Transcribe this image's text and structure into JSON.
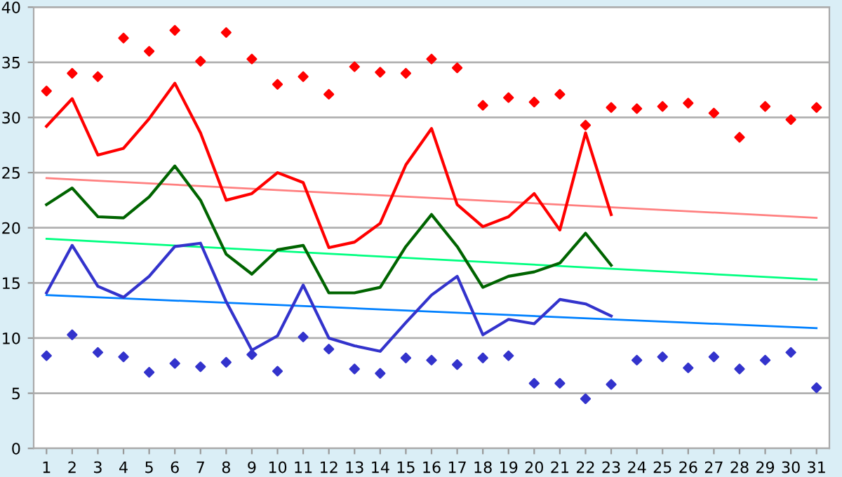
{
  "chart_data": {
    "type": "line",
    "x": [
      1,
      2,
      3,
      4,
      5,
      6,
      7,
      8,
      9,
      10,
      11,
      12,
      13,
      14,
      15,
      16,
      17,
      18,
      19,
      20,
      21,
      22,
      23,
      24,
      25,
      26,
      27,
      28,
      29,
      30,
      31
    ],
    "xlim": [
      0.5,
      31.5
    ],
    "xticks": [
      1,
      2,
      3,
      4,
      5,
      6,
      7,
      8,
      9,
      10,
      11,
      12,
      13,
      14,
      15,
      16,
      17,
      18,
      19,
      20,
      21,
      22,
      23,
      24,
      25,
      26,
      27,
      28,
      29,
      30,
      31
    ],
    "ylim": [
      0,
      40
    ],
    "yticks": [
      0,
      5,
      10,
      15,
      20,
      25,
      30,
      35,
      40
    ],
    "grid": "y",
    "legend": false,
    "series": [
      {
        "type": "scatter",
        "color": "#ff0000",
        "marker": "diamond",
        "values": [
          32.4,
          34.0,
          33.7,
          37.2,
          36.0,
          37.9,
          35.1,
          37.7,
          35.3,
          33.0,
          33.7,
          32.1,
          34.6,
          34.1,
          34.0,
          35.3,
          34.5,
          31.1,
          31.8,
          31.4,
          32.1,
          29.3,
          30.9,
          30.8,
          31.0,
          31.3,
          30.4,
          28.2,
          31.0,
          29.8,
          30.9
        ]
      },
      {
        "type": "scatter",
        "color": "#3333cc",
        "marker": "diamond",
        "values": [
          8.4,
          10.3,
          8.7,
          8.3,
          6.9,
          7.7,
          7.4,
          7.8,
          8.5,
          7.0,
          10.1,
          9.0,
          7.2,
          6.8,
          8.2,
          8.0,
          7.6,
          8.2,
          8.4,
          5.9,
          5.9,
          4.5,
          5.8,
          8.0,
          8.3,
          7.3,
          8.3,
          7.2,
          8.0,
          8.7,
          5.5
        ]
      },
      {
        "color": "#ff8080",
        "x": [
          1,
          31
        ],
        "values": [
          24.5,
          20.9
        ]
      },
      {
        "color": "#00ff80",
        "x": [
          1,
          31
        ],
        "values": [
          19.0,
          15.3
        ]
      },
      {
        "color": "#0080ff",
        "x": [
          1,
          31
        ],
        "values": [
          13.9,
          10.9
        ]
      },
      {
        "color": "#ff0000",
        "x": [
          1,
          2,
          3,
          4,
          5,
          6,
          7,
          8,
          9,
          10,
          11,
          12,
          13,
          14,
          15,
          16,
          17,
          18,
          19,
          20,
          21,
          22,
          23
        ],
        "values": [
          29.2,
          31.7,
          26.6,
          27.2,
          29.9,
          33.1,
          28.6,
          22.5,
          23.1,
          25.0,
          24.1,
          18.2,
          18.7,
          20.4,
          25.7,
          29.0,
          22.1,
          20.1,
          21.0,
          23.1,
          19.8,
          28.6,
          21.2
        ]
      },
      {
        "color": "#006400",
        "x": [
          1,
          2,
          3,
          4,
          5,
          6,
          7,
          8,
          9,
          10,
          11,
          12,
          13,
          14,
          15,
          16,
          17,
          18,
          19,
          20,
          21,
          22,
          23
        ],
        "values": [
          22.1,
          23.6,
          21.0,
          20.9,
          22.8,
          25.6,
          22.5,
          17.6,
          15.8,
          18.0,
          18.4,
          14.1,
          14.1,
          14.6,
          18.3,
          21.2,
          18.3,
          14.6,
          15.6,
          16.0,
          16.8,
          19.5,
          16.6
        ]
      },
      {
        "color": "#3333cc",
        "x": [
          1,
          2,
          3,
          4,
          5,
          6,
          7,
          8,
          9,
          10,
          11,
          12,
          13,
          14,
          15,
          16,
          17,
          18,
          19,
          20,
          21,
          22,
          23
        ],
        "values": [
          14.1,
          18.4,
          14.7,
          13.7,
          15.6,
          18.3,
          18.6,
          13.3,
          8.9,
          10.2,
          14.8,
          10.0,
          9.3,
          8.8,
          11.4,
          13.9,
          15.6,
          10.3,
          11.7,
          11.3,
          13.5,
          13.1,
          12.0
        ]
      }
    ]
  }
}
